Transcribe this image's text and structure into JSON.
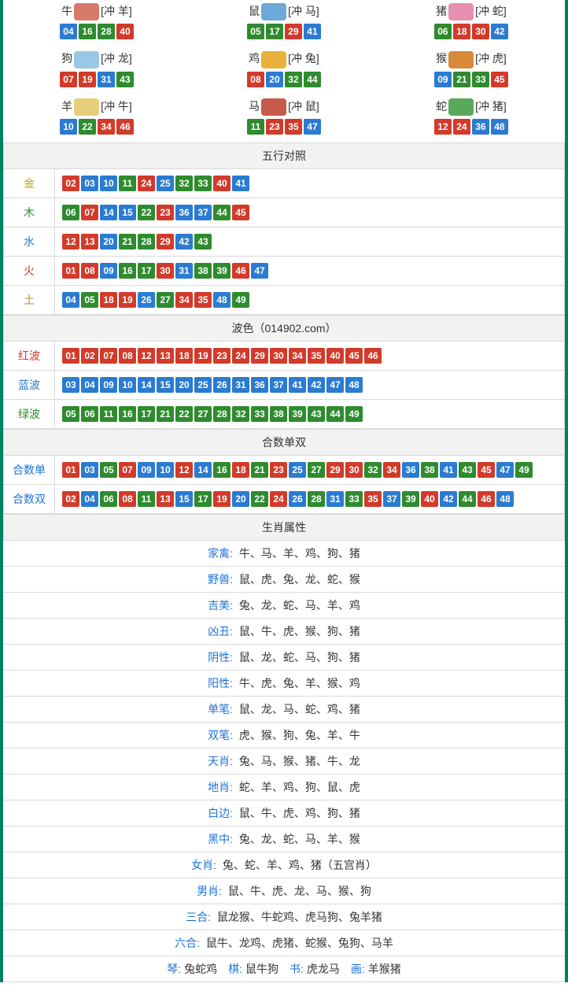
{
  "colors": {
    "red": "#d23a2a",
    "blue": "#2a7bd1",
    "green": "#2e8b2e"
  },
  "zodiac": [
    {
      "name": "牛",
      "clash": "[冲 羊]",
      "icon_color": "#d87a6a",
      "nums": [
        {
          "n": "04",
          "c": "blue"
        },
        {
          "n": "16",
          "c": "green"
        },
        {
          "n": "28",
          "c": "green"
        },
        {
          "n": "40",
          "c": "red"
        }
      ]
    },
    {
      "name": "鼠",
      "clash": "[冲 马]",
      "icon_color": "#6aa9d8",
      "nums": [
        {
          "n": "05",
          "c": "green"
        },
        {
          "n": "17",
          "c": "green"
        },
        {
          "n": "29",
          "c": "red"
        },
        {
          "n": "41",
          "c": "blue"
        }
      ]
    },
    {
      "name": "猪",
      "clash": "[冲 蛇]",
      "icon_color": "#e78fb0",
      "nums": [
        {
          "n": "06",
          "c": "green"
        },
        {
          "n": "18",
          "c": "red"
        },
        {
          "n": "30",
          "c": "red"
        },
        {
          "n": "42",
          "c": "blue"
        }
      ]
    },
    {
      "name": "狗",
      "clash": "[冲 龙]",
      "icon_color": "#9ac7e6",
      "nums": [
        {
          "n": "07",
          "c": "red"
        },
        {
          "n": "19",
          "c": "red"
        },
        {
          "n": "31",
          "c": "blue"
        },
        {
          "n": "43",
          "c": "green"
        }
      ]
    },
    {
      "name": "鸡",
      "clash": "[冲 兔]",
      "icon_color": "#e8b23a",
      "nums": [
        {
          "n": "08",
          "c": "red"
        },
        {
          "n": "20",
          "c": "blue"
        },
        {
          "n": "32",
          "c": "green"
        },
        {
          "n": "44",
          "c": "green"
        }
      ]
    },
    {
      "name": "猴",
      "clash": "[冲 虎]",
      "icon_color": "#d88a3a",
      "nums": [
        {
          "n": "09",
          "c": "blue"
        },
        {
          "n": "21",
          "c": "green"
        },
        {
          "n": "33",
          "c": "green"
        },
        {
          "n": "45",
          "c": "red"
        }
      ]
    },
    {
      "name": "羊",
      "clash": "[冲 牛]",
      "icon_color": "#e6cf7a",
      "nums": [
        {
          "n": "10",
          "c": "blue"
        },
        {
          "n": "22",
          "c": "green"
        },
        {
          "n": "34",
          "c": "red"
        },
        {
          "n": "46",
          "c": "red"
        }
      ]
    },
    {
      "name": "马",
      "clash": "[冲 鼠]",
      "icon_color": "#c75a4a",
      "nums": [
        {
          "n": "11",
          "c": "green"
        },
        {
          "n": "23",
          "c": "red"
        },
        {
          "n": "35",
          "c": "red"
        },
        {
          "n": "47",
          "c": "blue"
        }
      ]
    },
    {
      "name": "蛇",
      "clash": "[冲 猪]",
      "icon_color": "#5aa85a",
      "nums": [
        {
          "n": "12",
          "c": "red"
        },
        {
          "n": "24",
          "c": "red"
        },
        {
          "n": "36",
          "c": "blue"
        },
        {
          "n": "48",
          "c": "blue"
        }
      ]
    }
  ],
  "wuxing": {
    "title": "五行对照",
    "rows": [
      {
        "label": "金",
        "label_class": "gold",
        "nums": [
          {
            "n": "02",
            "c": "red"
          },
          {
            "n": "03",
            "c": "blue"
          },
          {
            "n": "10",
            "c": "blue"
          },
          {
            "n": "11",
            "c": "green"
          },
          {
            "n": "24",
            "c": "red"
          },
          {
            "n": "25",
            "c": "blue"
          },
          {
            "n": "32",
            "c": "green"
          },
          {
            "n": "33",
            "c": "green"
          },
          {
            "n": "40",
            "c": "red"
          },
          {
            "n": "41",
            "c": "blue"
          }
        ]
      },
      {
        "label": "木",
        "label_class": "wood",
        "nums": [
          {
            "n": "06",
            "c": "green"
          },
          {
            "n": "07",
            "c": "red"
          },
          {
            "n": "14",
            "c": "blue"
          },
          {
            "n": "15",
            "c": "blue"
          },
          {
            "n": "22",
            "c": "green"
          },
          {
            "n": "23",
            "c": "red"
          },
          {
            "n": "36",
            "c": "blue"
          },
          {
            "n": "37",
            "c": "blue"
          },
          {
            "n": "44",
            "c": "green"
          },
          {
            "n": "45",
            "c": "red"
          }
        ]
      },
      {
        "label": "水",
        "label_class": "water",
        "nums": [
          {
            "n": "12",
            "c": "red"
          },
          {
            "n": "13",
            "c": "red"
          },
          {
            "n": "20",
            "c": "blue"
          },
          {
            "n": "21",
            "c": "green"
          },
          {
            "n": "28",
            "c": "green"
          },
          {
            "n": "29",
            "c": "red"
          },
          {
            "n": "42",
            "c": "blue"
          },
          {
            "n": "43",
            "c": "green"
          }
        ]
      },
      {
        "label": "火",
        "label_class": "fire",
        "nums": [
          {
            "n": "01",
            "c": "red"
          },
          {
            "n": "08",
            "c": "red"
          },
          {
            "n": "09",
            "c": "blue"
          },
          {
            "n": "16",
            "c": "green"
          },
          {
            "n": "17",
            "c": "green"
          },
          {
            "n": "30",
            "c": "red"
          },
          {
            "n": "31",
            "c": "blue"
          },
          {
            "n": "38",
            "c": "green"
          },
          {
            "n": "39",
            "c": "green"
          },
          {
            "n": "46",
            "c": "red"
          },
          {
            "n": "47",
            "c": "blue"
          }
        ]
      },
      {
        "label": "土",
        "label_class": "earth",
        "nums": [
          {
            "n": "04",
            "c": "blue"
          },
          {
            "n": "05",
            "c": "green"
          },
          {
            "n": "18",
            "c": "red"
          },
          {
            "n": "19",
            "c": "red"
          },
          {
            "n": "26",
            "c": "blue"
          },
          {
            "n": "27",
            "c": "green"
          },
          {
            "n": "34",
            "c": "red"
          },
          {
            "n": "35",
            "c": "red"
          },
          {
            "n": "48",
            "c": "blue"
          },
          {
            "n": "49",
            "c": "green"
          }
        ]
      }
    ]
  },
  "bose": {
    "title": "波色（014902.com）",
    "rows": [
      {
        "label": "红波",
        "label_class": "redwave",
        "nums": [
          {
            "n": "01",
            "c": "red"
          },
          {
            "n": "02",
            "c": "red"
          },
          {
            "n": "07",
            "c": "red"
          },
          {
            "n": "08",
            "c": "red"
          },
          {
            "n": "12",
            "c": "red"
          },
          {
            "n": "13",
            "c": "red"
          },
          {
            "n": "18",
            "c": "red"
          },
          {
            "n": "19",
            "c": "red"
          },
          {
            "n": "23",
            "c": "red"
          },
          {
            "n": "24",
            "c": "red"
          },
          {
            "n": "29",
            "c": "red"
          },
          {
            "n": "30",
            "c": "red"
          },
          {
            "n": "34",
            "c": "red"
          },
          {
            "n": "35",
            "c": "red"
          },
          {
            "n": "40",
            "c": "red"
          },
          {
            "n": "45",
            "c": "red"
          },
          {
            "n": "46",
            "c": "red"
          }
        ]
      },
      {
        "label": "蓝波",
        "label_class": "bluewave",
        "nums": [
          {
            "n": "03",
            "c": "blue"
          },
          {
            "n": "04",
            "c": "blue"
          },
          {
            "n": "09",
            "c": "blue"
          },
          {
            "n": "10",
            "c": "blue"
          },
          {
            "n": "14",
            "c": "blue"
          },
          {
            "n": "15",
            "c": "blue"
          },
          {
            "n": "20",
            "c": "blue"
          },
          {
            "n": "25",
            "c": "blue"
          },
          {
            "n": "26",
            "c": "blue"
          },
          {
            "n": "31",
            "c": "blue"
          },
          {
            "n": "36",
            "c": "blue"
          },
          {
            "n": "37",
            "c": "blue"
          },
          {
            "n": "41",
            "c": "blue"
          },
          {
            "n": "42",
            "c": "blue"
          },
          {
            "n": "47",
            "c": "blue"
          },
          {
            "n": "48",
            "c": "blue"
          }
        ]
      },
      {
        "label": "绿波",
        "label_class": "greenwave",
        "nums": [
          {
            "n": "05",
            "c": "green"
          },
          {
            "n": "06",
            "c": "green"
          },
          {
            "n": "11",
            "c": "green"
          },
          {
            "n": "16",
            "c": "green"
          },
          {
            "n": "17",
            "c": "green"
          },
          {
            "n": "21",
            "c": "green"
          },
          {
            "n": "22",
            "c": "green"
          },
          {
            "n": "27",
            "c": "green"
          },
          {
            "n": "28",
            "c": "green"
          },
          {
            "n": "32",
            "c": "green"
          },
          {
            "n": "33",
            "c": "green"
          },
          {
            "n": "38",
            "c": "green"
          },
          {
            "n": "39",
            "c": "green"
          },
          {
            "n": "43",
            "c": "green"
          },
          {
            "n": "44",
            "c": "green"
          },
          {
            "n": "49",
            "c": "green"
          }
        ]
      }
    ]
  },
  "heshu": {
    "title": "合数单双",
    "rows": [
      {
        "label": "合数单",
        "nums": [
          {
            "n": "01",
            "c": "red"
          },
          {
            "n": "03",
            "c": "blue"
          },
          {
            "n": "05",
            "c": "green"
          },
          {
            "n": "07",
            "c": "red"
          },
          {
            "n": "09",
            "c": "blue"
          },
          {
            "n": "10",
            "c": "blue"
          },
          {
            "n": "12",
            "c": "red"
          },
          {
            "n": "14",
            "c": "blue"
          },
          {
            "n": "16",
            "c": "green"
          },
          {
            "n": "18",
            "c": "red"
          },
          {
            "n": "21",
            "c": "green"
          },
          {
            "n": "23",
            "c": "red"
          },
          {
            "n": "25",
            "c": "blue"
          },
          {
            "n": "27",
            "c": "green"
          },
          {
            "n": "29",
            "c": "red"
          },
          {
            "n": "30",
            "c": "red"
          },
          {
            "n": "32",
            "c": "green"
          },
          {
            "n": "34",
            "c": "red"
          },
          {
            "n": "36",
            "c": "blue"
          },
          {
            "n": "38",
            "c": "green"
          },
          {
            "n": "41",
            "c": "blue"
          },
          {
            "n": "43",
            "c": "green"
          },
          {
            "n": "45",
            "c": "red"
          },
          {
            "n": "47",
            "c": "blue"
          },
          {
            "n": "49",
            "c": "green"
          }
        ]
      },
      {
        "label": "合数双",
        "nums": [
          {
            "n": "02",
            "c": "red"
          },
          {
            "n": "04",
            "c": "blue"
          },
          {
            "n": "06",
            "c": "green"
          },
          {
            "n": "08",
            "c": "red"
          },
          {
            "n": "11",
            "c": "green"
          },
          {
            "n": "13",
            "c": "red"
          },
          {
            "n": "15",
            "c": "blue"
          },
          {
            "n": "17",
            "c": "green"
          },
          {
            "n": "19",
            "c": "red"
          },
          {
            "n": "20",
            "c": "blue"
          },
          {
            "n": "22",
            "c": "green"
          },
          {
            "n": "24",
            "c": "red"
          },
          {
            "n": "26",
            "c": "blue"
          },
          {
            "n": "28",
            "c": "green"
          },
          {
            "n": "31",
            "c": "blue"
          },
          {
            "n": "33",
            "c": "green"
          },
          {
            "n": "35",
            "c": "red"
          },
          {
            "n": "37",
            "c": "blue"
          },
          {
            "n": "39",
            "c": "green"
          },
          {
            "n": "40",
            "c": "red"
          },
          {
            "n": "42",
            "c": "blue"
          },
          {
            "n": "44",
            "c": "green"
          },
          {
            "n": "46",
            "c": "red"
          },
          {
            "n": "48",
            "c": "blue"
          }
        ]
      }
    ]
  },
  "attrs": {
    "title": "生肖属性",
    "rows": [
      {
        "key": "家禽",
        "val": "牛、马、羊、鸡、狗、猪"
      },
      {
        "key": "野兽",
        "val": "鼠、虎、兔、龙、蛇、猴"
      },
      {
        "key": "吉美",
        "val": "兔、龙、蛇、马、羊、鸡"
      },
      {
        "key": "凶丑",
        "val": "鼠、牛、虎、猴、狗、猪"
      },
      {
        "key": "阴性",
        "val": "鼠、龙、蛇、马、狗、猪"
      },
      {
        "key": "阳性",
        "val": "牛、虎、兔、羊、猴、鸡"
      },
      {
        "key": "单笔",
        "val": "鼠、龙、马、蛇、鸡、猪"
      },
      {
        "key": "双笔",
        "val": "虎、猴、狗、兔、羊、牛"
      },
      {
        "key": "天肖",
        "val": "兔、马、猴、猪、牛、龙"
      },
      {
        "key": "地肖",
        "val": "蛇、羊、鸡、狗、鼠、虎"
      },
      {
        "key": "白边",
        "val": "鼠、牛、虎、鸡、狗、猪"
      },
      {
        "key": "黑中",
        "val": "兔、龙、蛇、马、羊、猴"
      },
      {
        "key": "女肖",
        "val": "兔、蛇、羊、鸡、猪（五宫肖）"
      },
      {
        "key": "男肖",
        "val": "鼠、牛、虎、龙、马、猴、狗"
      },
      {
        "key": "三合",
        "val": "鼠龙猴、牛蛇鸡、虎马狗、兔羊猪"
      },
      {
        "key": "六合",
        "val": "鼠牛、龙鸡、虎猪、蛇猴、兔狗、马羊"
      }
    ],
    "footer": [
      {
        "key": "琴",
        "val": "兔蛇鸡"
      },
      {
        "key": "棋",
        "val": "鼠牛狗"
      },
      {
        "key": "书",
        "val": "虎龙马"
      },
      {
        "key": "画",
        "val": "羊猴猪"
      }
    ]
  }
}
